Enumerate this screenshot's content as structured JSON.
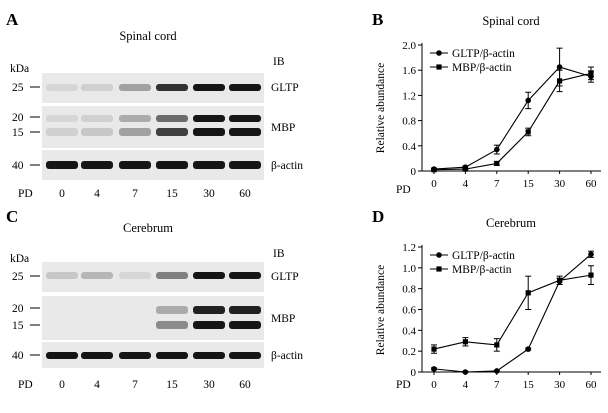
{
  "panels": {
    "A": {
      "letter": "A",
      "title": "Spinal cord",
      "ib_label": "IB",
      "kda_label": "kDa",
      "markers": [
        "25",
        "20",
        "15",
        "40"
      ],
      "bands": [
        "GLTP",
        "MBP",
        "β-actin"
      ],
      "pd_label": "PD",
      "lanes": [
        "0",
        "4",
        "7",
        "15",
        "30",
        "60"
      ]
    },
    "C": {
      "letter": "C",
      "title": "Cerebrum",
      "ib_label": "IB",
      "kda_label": "kDa",
      "markers": [
        "25",
        "20",
        "15",
        "40"
      ],
      "bands": [
        "GLTP",
        "MBP",
        "β-actin"
      ],
      "pd_label": "PD",
      "lanes": [
        "0",
        "4",
        "7",
        "15",
        "30",
        "60"
      ]
    },
    "B": {
      "letter": "B"
    },
    "D": {
      "letter": "D"
    }
  },
  "blot_intensity": {
    "A": {
      "GLTP": [
        0.05,
        0.08,
        0.3,
        0.82,
        0.95,
        0.95
      ],
      "MBP_upper": [
        0.05,
        0.08,
        0.25,
        0.55,
        0.95,
        0.95
      ],
      "MBP_lower": [
        0.08,
        0.12,
        0.3,
        0.75,
        0.95,
        0.95
      ],
      "actin": [
        0.95,
        0.95,
        0.95,
        0.95,
        0.95,
        0.95
      ]
    },
    "C": {
      "GLTP": [
        0.12,
        0.2,
        0.05,
        0.45,
        0.95,
        0.95
      ],
      "MBP_upper": [
        0,
        0,
        0,
        0.25,
        0.9,
        0.9
      ],
      "MBP_lower": [
        0,
        0,
        0,
        0.4,
        0.95,
        0.95
      ],
      "actin": [
        0.95,
        0.95,
        0.95,
        0.95,
        0.95,
        0.95
      ]
    }
  },
  "chart_data": [
    {
      "type": "line",
      "panel": "B",
      "title": "Spinal cord",
      "xlabel": "PD",
      "ylabel": "Relative abundance",
      "categories": [
        "0",
        "4",
        "7",
        "15",
        "30",
        "60"
      ],
      "ylim": [
        0,
        2.0
      ],
      "yticks": [
        "0",
        "0.4",
        "0.8",
        "1.2",
        "1.6",
        "2.0"
      ],
      "series": [
        {
          "name": "GLTP/β-actin",
          "marker": "circle",
          "values": [
            0.03,
            0.06,
            0.34,
            1.12,
            1.65,
            1.5
          ],
          "errors": [
            0.01,
            0.02,
            0.07,
            0.13,
            0.3,
            0.09
          ]
        },
        {
          "name": "MBP/β-actin",
          "marker": "square",
          "values": [
            0.02,
            0.03,
            0.12,
            0.62,
            1.43,
            1.55
          ],
          "errors": [
            0.01,
            0.01,
            0.03,
            0.06,
            0.17,
            0.1
          ]
        }
      ]
    },
    {
      "type": "line",
      "panel": "D",
      "title": "Cerebrum",
      "xlabel": "PD",
      "ylabel": "Relative abundance",
      "categories": [
        "0",
        "4",
        "7",
        "15",
        "30",
        "60"
      ],
      "ylim": [
        0,
        1.2
      ],
      "yticks": [
        "0",
        "0.2",
        "0.4",
        "0.6",
        "0.8",
        "1.0",
        "1.2"
      ],
      "series": [
        {
          "name": "GLTP/β-actin",
          "marker": "circle",
          "values": [
            0.03,
            0.0,
            0.01,
            0.22,
            0.87,
            1.13
          ],
          "errors": [
            0.01,
            0.005,
            0.005,
            0.01,
            0.03,
            0.03
          ]
        },
        {
          "name": "MBP/β-actin",
          "marker": "square",
          "values": [
            0.22,
            0.29,
            0.26,
            0.76,
            0.88,
            0.93
          ],
          "errors": [
            0.04,
            0.04,
            0.06,
            0.16,
            0.04,
            0.09
          ]
        }
      ]
    }
  ]
}
